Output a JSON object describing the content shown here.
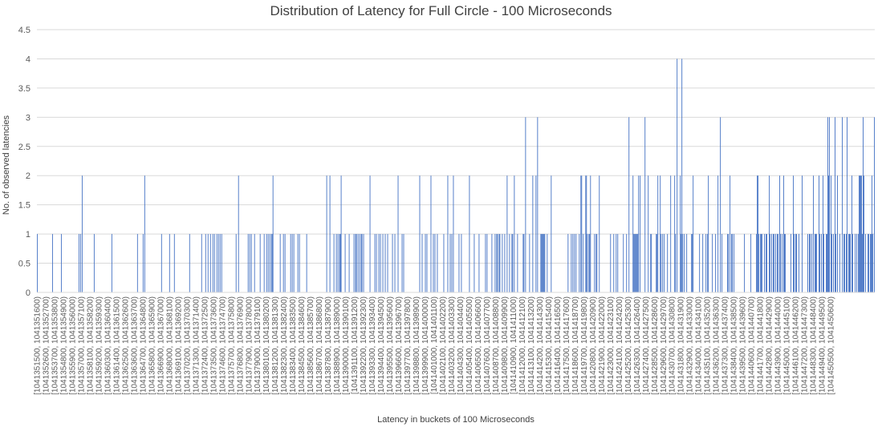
{
  "chart_data": {
    "type": "bar",
    "title": "Distribution of Latency for Full Circle - 100 Microseconds",
    "xlabel": "Latency in buckets of 100 Microseconds",
    "ylabel": "No. of observed latencies",
    "ylim": [
      0,
      4.5
    ],
    "yticks": [
      0,
      0.5,
      1,
      1.5,
      2,
      2.5,
      3,
      3.5,
      4,
      4.5
    ],
    "grid": true,
    "legend": "none",
    "bar_color": "#4472C4",
    "x_start": 1041351500,
    "x_step": 100,
    "x_count": 991,
    "tick_label_every": 11,
    "values": [
      1,
      0,
      0,
      0,
      0,
      0,
      0,
      0,
      0,
      0,
      0,
      0,
      0,
      0,
      0,
      0,
      0,
      0,
      0,
      1,
      0,
      0,
      0,
      0,
      0,
      0,
      0,
      0,
      0,
      0,
      1,
      0,
      0,
      0,
      0,
      0,
      0,
      0,
      0,
      0,
      0,
      0,
      0,
      0,
      0,
      0,
      0,
      0,
      0,
      0,
      0,
      0,
      1,
      0,
      1,
      0,
      2,
      0,
      0,
      0,
      0,
      0,
      0,
      0,
      0,
      0,
      0,
      0,
      0,
      0,
      0,
      1,
      0,
      0,
      0,
      0,
      0,
      0,
      0,
      0,
      0,
      0,
      0,
      0,
      0,
      0,
      0,
      0,
      0,
      0,
      0,
      0,
      0,
      1,
      0,
      0,
      0,
      0,
      0,
      0,
      0,
      0,
      0,
      0,
      0,
      0,
      0,
      0,
      0,
      0,
      0,
      0,
      0,
      0,
      0,
      0,
      0,
      0,
      0,
      0,
      0,
      0,
      0,
      0,
      0,
      1,
      0,
      0,
      0,
      0,
      0,
      0,
      1,
      0,
      2,
      0,
      0,
      0,
      0,
      0,
      0,
      0,
      0,
      0,
      0,
      0,
      0,
      0,
      0,
      0,
      0,
      0,
      0,
      0,
      0,
      1,
      0,
      0,
      0,
      0,
      0,
      0,
      0,
      0,
      0,
      1,
      0,
      0,
      0,
      0,
      0,
      1,
      0,
      0,
      0,
      0,
      0,
      0,
      0,
      0,
      0,
      0,
      0,
      0,
      0,
      0,
      0,
      0,
      0,
      0,
      1,
      0,
      0,
      0,
      0,
      0,
      0,
      0,
      0,
      0,
      0,
      0,
      0,
      0,
      0,
      1,
      0,
      0,
      0,
      0,
      1,
      0,
      0,
      1,
      0,
      0,
      1,
      0,
      0,
      1,
      0,
      1,
      0,
      0,
      1,
      0,
      1,
      0,
      1,
      0,
      1,
      0,
      0,
      0,
      0,
      0,
      0,
      0,
      0,
      0,
      0,
      0,
      0,
      0,
      0,
      0,
      0,
      0,
      1,
      0,
      0,
      2,
      0,
      0,
      0,
      0,
      0,
      0,
      0,
      0,
      0,
      0,
      0,
      1,
      0,
      1,
      0,
      1,
      0,
      0,
      0,
      1,
      0,
      0,
      0,
      0,
      0,
      0,
      1,
      0,
      0,
      0,
      0,
      1,
      0,
      0,
      1,
      0,
      1,
      0,
      1,
      0,
      1,
      1,
      2,
      0,
      0,
      0,
      0,
      0,
      0,
      0,
      0,
      1,
      0,
      0,
      0,
      1,
      0,
      1,
      0,
      0,
      0,
      0,
      0,
      0,
      1,
      0,
      1,
      0,
      1,
      0,
      0,
      0,
      0,
      1,
      0,
      1,
      0,
      0,
      0,
      0,
      0,
      0,
      0,
      0,
      1,
      0,
      0,
      0,
      0,
      0,
      0,
      0,
      0,
      0,
      0,
      0,
      0,
      0,
      0,
      0,
      0,
      0,
      0,
      0,
      0,
      0,
      0,
      0,
      0,
      2,
      0,
      0,
      0,
      2,
      0,
      0,
      0,
      0,
      1,
      0,
      0,
      1,
      0,
      1,
      0,
      1,
      1,
      2,
      0,
      0,
      0,
      0,
      1,
      0,
      0,
      0,
      0,
      1,
      0,
      0,
      0,
      0,
      0,
      1,
      0,
      1,
      1,
      0,
      1,
      0,
      1,
      0,
      1,
      1,
      0,
      1,
      0,
      0,
      0,
      0,
      0,
      0,
      0,
      2,
      0,
      0,
      0,
      0,
      0,
      1,
      0,
      1,
      0,
      0,
      1,
      0,
      1,
      0,
      0,
      1,
      0,
      0,
      1,
      0,
      0,
      1,
      0,
      0,
      0,
      0,
      0,
      1,
      0,
      0,
      1,
      0,
      0,
      0,
      2,
      0,
      0,
      0,
      0,
      1,
      0,
      1,
      0,
      0,
      0,
      0,
      0,
      0,
      0,
      0,
      0,
      0,
      0,
      0,
      0,
      0,
      0,
      0,
      0,
      0,
      0,
      2,
      0,
      0,
      1,
      0,
      0,
      0,
      1,
      0,
      1,
      0,
      0,
      0,
      0,
      2,
      0,
      0,
      1,
      0,
      1,
      0,
      0,
      1,
      0,
      0,
      0,
      0,
      0,
      0,
      0,
      1,
      0,
      0,
      0,
      0,
      2,
      0,
      0,
      1,
      0,
      1,
      0,
      2,
      0,
      0,
      0,
      0,
      0,
      0,
      1,
      0,
      0,
      1,
      0,
      0,
      0,
      0,
      0,
      0,
      0,
      0,
      0,
      2,
      0,
      0,
      0,
      0,
      0,
      1,
      0,
      0,
      0,
      0,
      0,
      1,
      0,
      0,
      0,
      0,
      0,
      0,
      0,
      1,
      0,
      1,
      0,
      0,
      0,
      0,
      0,
      1,
      0,
      0,
      0,
      1,
      0,
      1,
      1,
      0,
      1,
      1,
      0,
      0,
      1,
      0,
      0,
      1,
      0,
      0,
      2,
      0,
      0,
      1,
      0,
      0,
      1,
      1,
      0,
      2,
      0,
      0,
      0,
      1,
      0,
      0,
      0,
      0,
      0,
      0,
      1,
      1,
      0,
      3,
      0,
      0,
      0,
      0,
      1,
      0,
      0,
      0,
      2,
      0,
      0,
      0,
      2,
      0,
      3,
      0,
      0,
      0,
      1,
      1,
      1,
      1,
      1,
      1,
      0,
      0,
      1,
      0,
      0,
      0,
      0,
      2,
      0,
      0,
      0,
      0,
      0,
      0,
      0,
      0,
      0,
      0,
      0,
      0,
      0,
      0,
      0,
      0,
      0,
      0,
      0,
      0,
      1,
      0,
      0,
      0,
      1,
      0,
      1,
      0,
      1,
      0,
      1,
      0,
      0,
      0,
      1,
      0,
      2,
      2,
      0,
      1,
      0,
      0,
      2,
      2,
      1,
      0,
      1,
      1,
      2,
      0,
      0,
      0,
      0,
      1,
      0,
      1,
      1,
      0,
      0,
      2,
      0,
      0,
      0,
      0,
      0,
      0,
      0,
      0,
      0,
      0,
      0,
      0,
      0,
      1,
      0,
      0,
      0,
      1,
      0,
      0,
      1,
      0,
      1,
      0,
      0,
      0,
      0,
      0,
      0,
      1,
      0,
      0,
      0,
      1,
      0,
      0,
      3,
      0,
      0,
      0,
      0,
      2,
      1,
      1,
      1,
      1,
      1,
      1,
      2,
      0,
      2,
      0,
      0,
      0,
      0,
      0,
      3,
      0,
      0,
      0,
      2,
      0,
      0,
      1,
      1,
      0,
      0,
      0,
      0,
      0,
      1,
      1,
      2,
      0,
      0,
      2,
      1,
      0,
      1,
      0,
      1,
      0,
      0,
      0,
      1,
      0,
      0,
      0,
      2,
      0,
      0,
      0,
      0,
      2,
      1,
      0,
      4,
      0,
      0,
      0,
      2,
      1,
      4,
      1,
      0,
      1,
      0,
      0,
      1,
      0,
      0,
      0,
      0,
      0,
      1,
      1,
      2,
      0,
      0,
      0,
      0,
      0,
      0,
      0,
      1,
      0,
      0,
      0,
      1,
      0,
      0,
      0,
      1,
      0,
      1,
      2,
      0,
      0,
      0,
      0,
      1,
      0,
      0,
      0,
      1,
      0,
      0,
      2,
      0,
      0,
      3,
      0,
      1,
      0,
      0,
      0,
      0,
      0,
      0,
      1,
      1,
      0,
      2,
      0,
      1,
      1,
      0,
      1,
      0,
      0,
      0,
      0,
      0,
      0,
      0,
      0,
      0,
      0,
      0,
      0,
      1,
      0,
      0,
      0,
      0,
      0,
      0,
      0,
      1,
      0,
      0,
      0,
      0,
      0,
      0,
      1,
      2,
      2,
      1,
      0,
      1,
      1,
      1,
      0,
      0,
      1,
      0,
      1,
      1,
      0,
      0,
      2,
      1,
      0,
      1,
      0,
      1,
      1,
      0,
      1,
      0,
      1,
      1,
      0,
      2,
      1,
      0,
      1,
      0,
      2,
      1,
      1,
      0,
      0,
      0,
      0,
      0,
      0,
      1,
      0,
      0,
      2,
      1,
      0,
      1,
      1,
      0,
      0,
      1,
      0,
      0,
      0,
      2,
      0,
      0,
      0,
      0,
      0,
      0,
      1,
      0,
      1,
      1,
      0,
      1,
      0,
      2,
      0,
      1,
      1,
      1,
      0,
      0,
      2,
      1,
      0,
      1,
      0,
      2,
      1,
      0,
      0,
      1,
      1,
      3,
      2,
      3,
      0,
      2,
      1,
      0,
      1,
      0,
      3,
      1,
      0,
      2,
      0,
      0,
      1,
      0,
      0,
      3,
      0,
      1,
      1,
      0,
      1,
      3,
      0,
      1,
      1,
      1,
      0,
      2,
      1,
      0,
      0,
      1,
      0,
      1,
      0,
      1,
      2,
      2,
      2,
      2,
      1,
      3,
      2,
      0,
      1,
      0,
      0,
      1,
      1,
      0,
      1,
      1,
      2,
      1,
      0,
      3
    ]
  }
}
